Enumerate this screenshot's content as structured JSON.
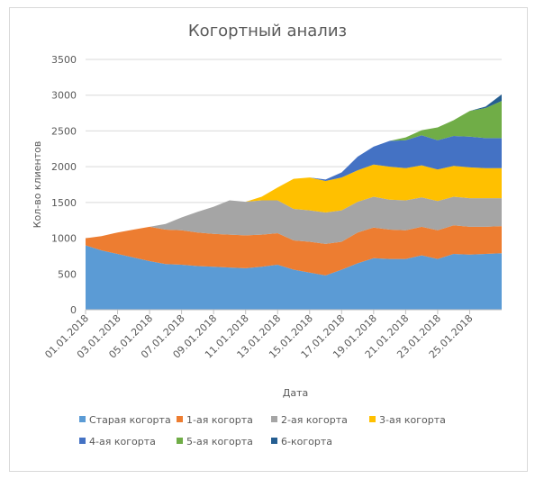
{
  "chart_data": {
    "type": "area",
    "stacked": true,
    "title": "Когортный анализ",
    "xlabel": "Дата",
    "ylabel": "Кол-во клиентов",
    "ylim": [
      0,
      3500
    ],
    "yticks": [
      0,
      500,
      1000,
      1500,
      2000,
      2500,
      3000,
      3500
    ],
    "grid": true,
    "legend_position": "bottom",
    "x": [
      "01.01.2018",
      "02.01.2018",
      "03.01.2018",
      "04.01.2018",
      "05.01.2018",
      "06.01.2018",
      "07.01.2018",
      "08.01.2018",
      "09.01.2018",
      "10.01.2018",
      "11.01.2018",
      "12.01.2018",
      "13.01.2018",
      "14.01.2018",
      "15.01.2018",
      "16.01.2018",
      "17.01.2018",
      "18.01.2018",
      "19.01.2018",
      "20.01.2018",
      "21.01.2018",
      "22.01.2018",
      "23.01.2018",
      "24.01.2018",
      "25.01.2018",
      "26.01.2018",
      "27.01.2018"
    ],
    "xtick_labels": [
      "01.01.2018",
      "03.01.2018",
      "05.01.2018",
      "07.01.2018",
      "09.01.2018",
      "11.01.2018",
      "13.01.2018",
      "15.01.2018",
      "17.01.2018",
      "19.01.2018",
      "21.01.2018",
      "23.01.2018",
      "25.01.2018"
    ],
    "series": [
      {
        "name": "Старая когорта",
        "color": "#5b9bd5",
        "values": [
          900,
          830,
          780,
          730,
          680,
          640,
          630,
          610,
          600,
          590,
          580,
          600,
          630,
          560,
          520,
          480,
          560,
          650,
          720,
          710,
          710,
          760,
          710,
          780,
          770,
          780,
          790
        ]
      },
      {
        "name": "1-ая когорта",
        "color": "#ed7d31",
        "values": [
          100,
          200,
          300,
          390,
          480,
          480,
          480,
          470,
          460,
          460,
          460,
          450,
          440,
          410,
          430,
          440,
          390,
          430,
          430,
          410,
          400,
          400,
          400,
          400,
          390,
          380,
          380
        ]
      },
      {
        "name": "2-ая когорта",
        "color": "#a5a5a5",
        "values": [
          0,
          0,
          0,
          0,
          0,
          80,
          180,
          290,
          380,
          480,
          470,
          480,
          460,
          440,
          440,
          440,
          440,
          430,
          430,
          420,
          420,
          410,
          410,
          400,
          400,
          400,
          390
        ]
      },
      {
        "name": "3-ая когорта",
        "color": "#ffc000",
        "values": [
          0,
          0,
          0,
          0,
          0,
          0,
          0,
          0,
          0,
          0,
          0,
          50,
          180,
          420,
          460,
          440,
          460,
          440,
          450,
          460,
          450,
          450,
          440,
          430,
          430,
          420,
          420
        ]
      },
      {
        "name": "4-ая когорта",
        "color": "#4472c4",
        "values": [
          0,
          0,
          0,
          0,
          0,
          0,
          0,
          0,
          0,
          0,
          0,
          0,
          0,
          0,
          0,
          20,
          70,
          190,
          250,
          360,
          390,
          420,
          410,
          420,
          430,
          420,
          420
        ]
      },
      {
        "name": "5-ая когорта",
        "color": "#70ad47",
        "values": [
          0,
          0,
          0,
          0,
          0,
          0,
          0,
          0,
          0,
          0,
          0,
          0,
          0,
          0,
          0,
          0,
          0,
          0,
          0,
          0,
          40,
          70,
          180,
          220,
          360,
          420,
          520
        ]
      },
      {
        "name": "6-когорта",
        "color": "#255e91",
        "values": [
          0,
          0,
          0,
          0,
          0,
          0,
          0,
          0,
          0,
          0,
          0,
          0,
          0,
          0,
          0,
          0,
          0,
          0,
          0,
          0,
          0,
          0,
          0,
          0,
          0,
          20,
          90
        ]
      }
    ]
  }
}
